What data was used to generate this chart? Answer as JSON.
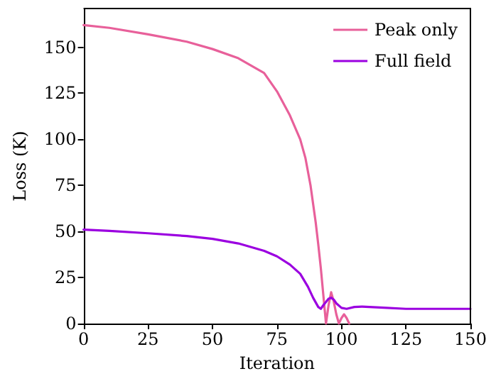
{
  "chart_data": {
    "type": "line",
    "xlabel": "Iteration",
    "ylabel": "Loss (K)",
    "xlim": [
      0,
      150
    ],
    "ylim": [
      0,
      171
    ],
    "xticks": [
      0,
      25,
      50,
      75,
      100,
      125,
      150
    ],
    "yticks": [
      0,
      25,
      50,
      75,
      100,
      125,
      150
    ],
    "grid": false,
    "legend": "top right",
    "marker": "none",
    "line_style": "solid",
    "series": [
      {
        "name": "Peak only",
        "color": "#e8609a",
        "x": [
          0,
          10,
          25,
          40,
          50,
          60,
          70,
          75,
          80,
          84,
          86,
          88,
          90,
          91,
          92,
          93,
          94,
          95,
          96,
          97,
          98,
          99,
          100,
          101,
          102,
          103
        ],
        "values": [
          162,
          160.5,
          157,
          153,
          149,
          144,
          136,
          126,
          113,
          100,
          90,
          75,
          55,
          43,
          30,
          15,
          0,
          10,
          17,
          12,
          5,
          0,
          3,
          5,
          3,
          0
        ]
      },
      {
        "name": "Full field",
        "color": "#9b00e0",
        "x": [
          0,
          10,
          25,
          40,
          50,
          60,
          70,
          75,
          80,
          84,
          87,
          89,
          91,
          92,
          93,
          95,
          96,
          97,
          98,
          100,
          102,
          105,
          108,
          115,
          125,
          150
        ],
        "values": [
          51,
          50.3,
          49,
          47.5,
          46,
          43.5,
          39.5,
          36.5,
          32,
          27,
          20,
          14,
          9,
          8,
          10,
          13.5,
          14,
          13,
          11,
          8.5,
          8,
          9,
          9.2,
          8.7,
          8,
          8
        ]
      }
    ]
  }
}
